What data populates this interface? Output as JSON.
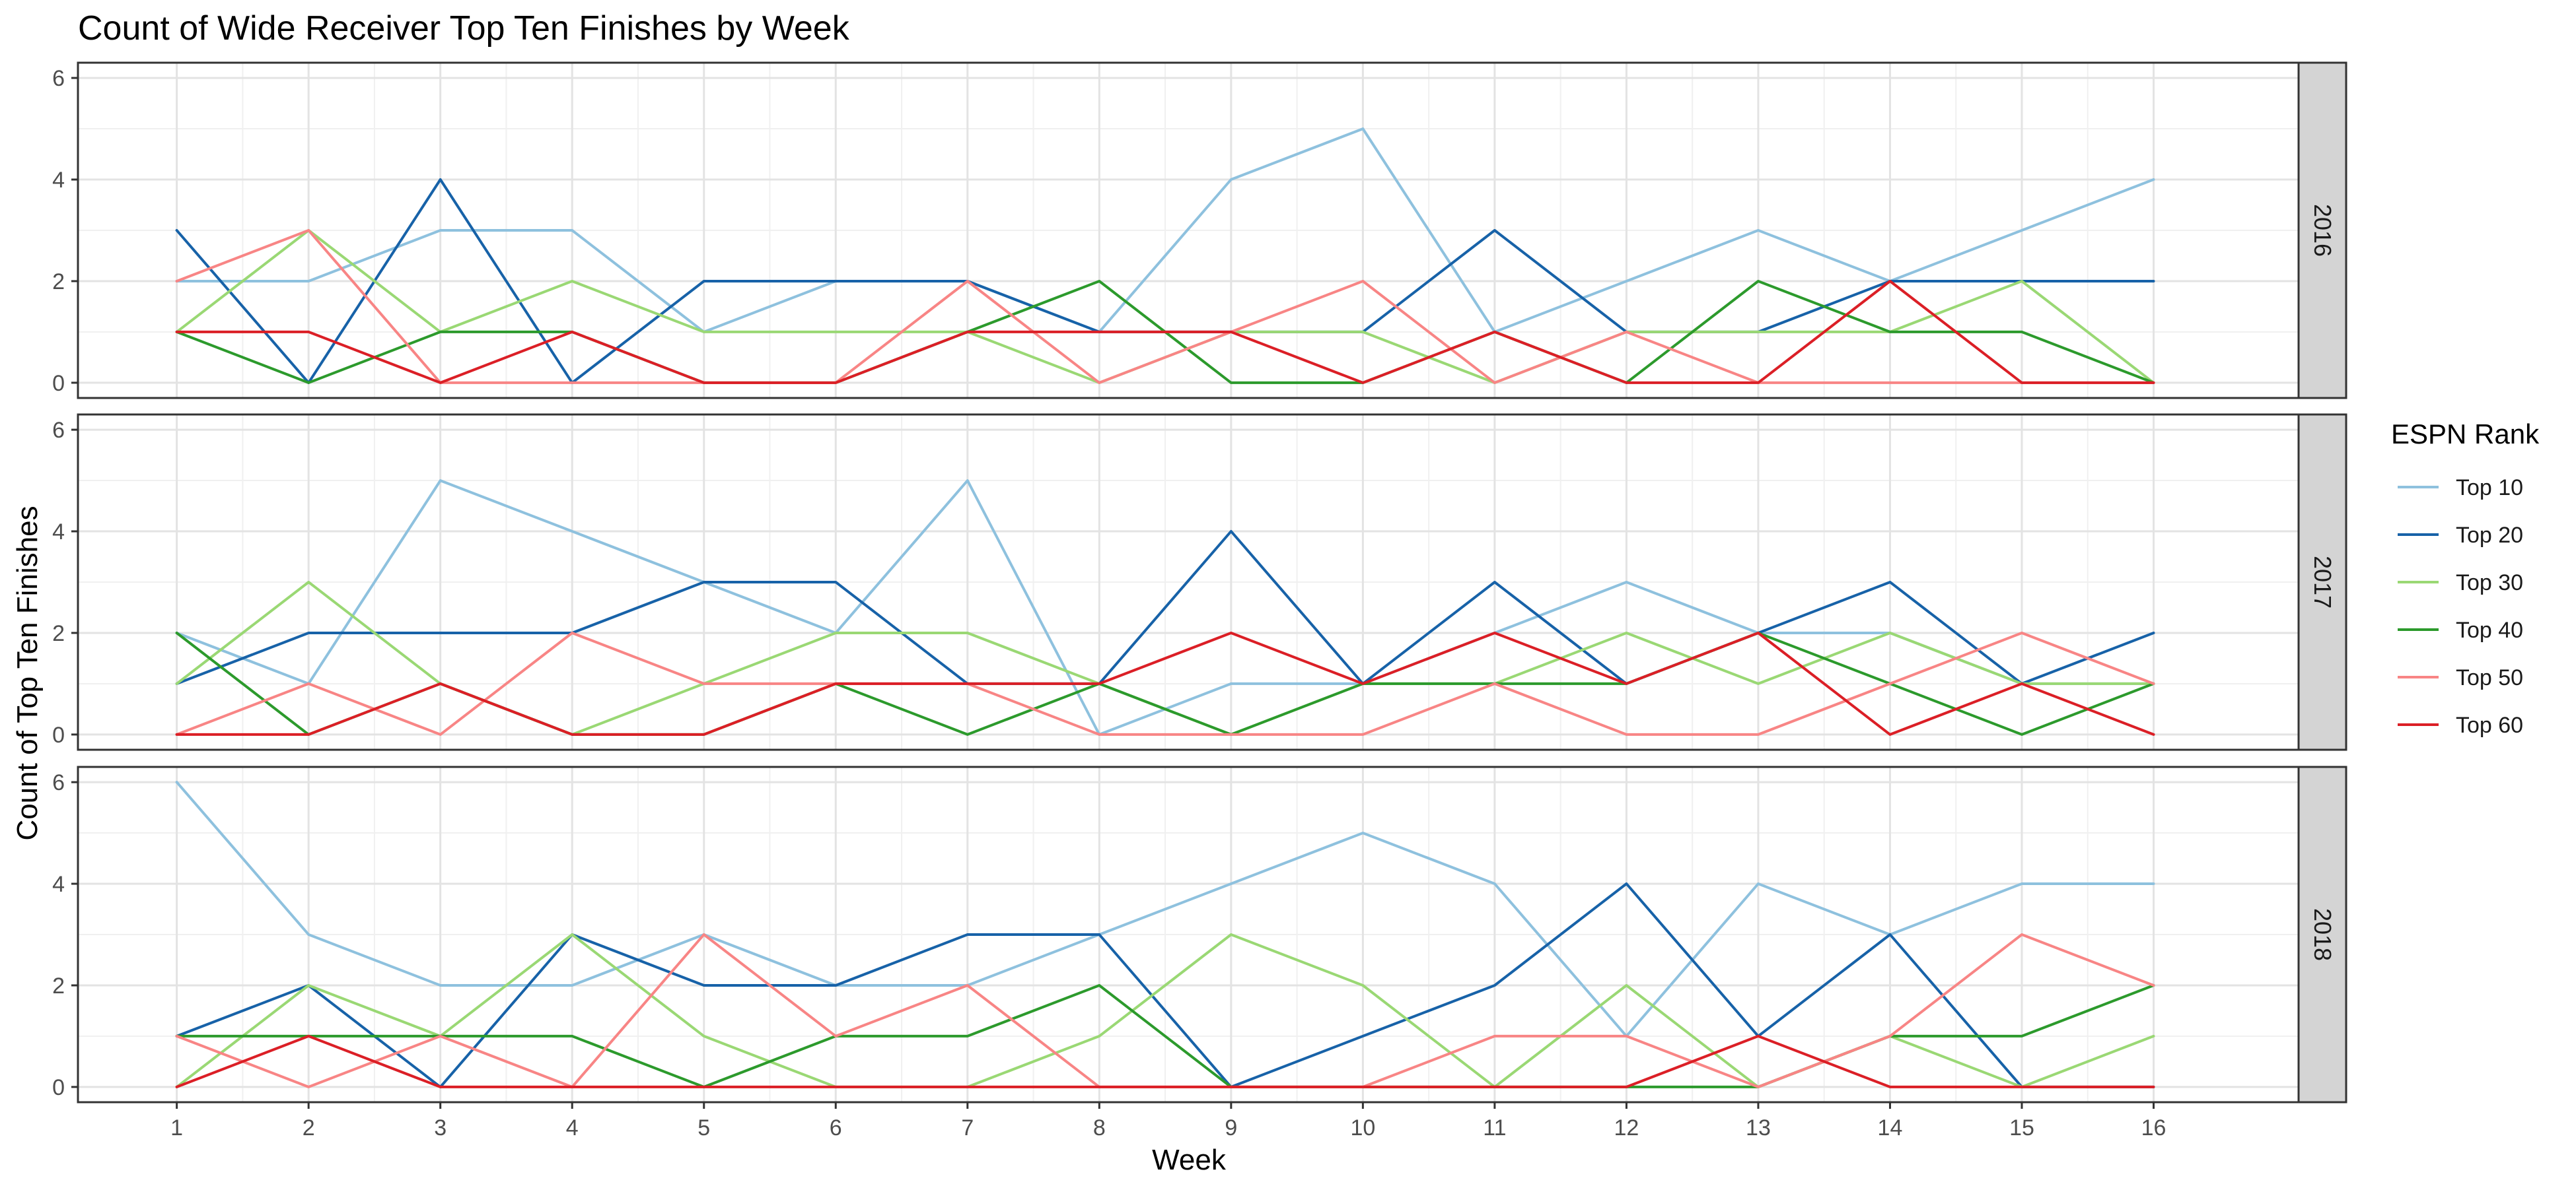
{
  "chart_data": {
    "type": "line",
    "title": "Count of Wide Receiver Top Ten Finishes by Week",
    "xlabel": "Week",
    "ylabel": "Count of Top Ten Finishes",
    "x": [
      1,
      2,
      3,
      4,
      5,
      6,
      7,
      8,
      9,
      10,
      11,
      12,
      13,
      14,
      15,
      16
    ],
    "xlim": [
      0.25,
      17.1
    ],
    "ylim": [
      -0.3,
      6.3
    ],
    "yticks": [
      0,
      2,
      4,
      6
    ],
    "grid": true,
    "legend": {
      "title": "ESPN Rank",
      "placement": "right"
    },
    "series_meta": [
      {
        "name": "Top 10",
        "color": "#8ec1de"
      },
      {
        "name": "Top 20",
        "color": "#1762a8"
      },
      {
        "name": "Top 30",
        "color": "#9ad874"
      },
      {
        "name": "Top 40",
        "color": "#2c9a2c"
      },
      {
        "name": "Top 50",
        "color": "#f88585"
      },
      {
        "name": "Top 60",
        "color": "#db1f26"
      }
    ],
    "facets": [
      {
        "label": "2016",
        "series": [
          {
            "name": "Top 10",
            "values": [
              2,
              2,
              3,
              3,
              1,
              2,
              2,
              1,
              4,
              5,
              1,
              2,
              3,
              2,
              3,
              4
            ]
          },
          {
            "name": "Top 20",
            "values": [
              3,
              0,
              4,
              0,
              2,
              2,
              2,
              1,
              1,
              1,
              3,
              1,
              1,
              2,
              2,
              2
            ]
          },
          {
            "name": "Top 30",
            "values": [
              1,
              3,
              1,
              2,
              1,
              1,
              1,
              0,
              1,
              1,
              0,
              1,
              1,
              1,
              2,
              0
            ]
          },
          {
            "name": "Top 40",
            "values": [
              1,
              0,
              1,
              1,
              0,
              0,
              1,
              2,
              0,
              0,
              1,
              0,
              2,
              1,
              1,
              0
            ]
          },
          {
            "name": "Top 50",
            "values": [
              2,
              3,
              0,
              0,
              0,
              0,
              2,
              0,
              1,
              2,
              0,
              1,
              0,
              0,
              0,
              0
            ]
          },
          {
            "name": "Top 60",
            "values": [
              1,
              1,
              0,
              1,
              0,
              0,
              1,
              1,
              1,
              0,
              1,
              0,
              0,
              2,
              0,
              0
            ]
          }
        ]
      },
      {
        "label": "2017",
        "series": [
          {
            "name": "Top 10",
            "values": [
              2,
              1,
              5,
              4,
              3,
              2,
              5,
              0,
              1,
              1,
              2,
              3,
              2,
              2,
              1,
              1
            ]
          },
          {
            "name": "Top 20",
            "values": [
              1,
              2,
              2,
              2,
              3,
              3,
              1,
              1,
              4,
              1,
              3,
              1,
              2,
              3,
              1,
              2
            ]
          },
          {
            "name": "Top 30",
            "values": [
              1,
              3,
              1,
              0,
              1,
              2,
              2,
              1,
              0,
              1,
              1,
              2,
              1,
              2,
              1,
              1
            ]
          },
          {
            "name": "Top 40",
            "values": [
              2,
              0,
              1,
              0,
              0,
              1,
              0,
              1,
              0,
              1,
              1,
              1,
              2,
              1,
              0,
              1
            ]
          },
          {
            "name": "Top 50",
            "values": [
              0,
              1,
              0,
              2,
              1,
              1,
              1,
              0,
              0,
              0,
              1,
              0,
              0,
              1,
              2,
              1
            ]
          },
          {
            "name": "Top 60",
            "values": [
              0,
              0,
              1,
              0,
              0,
              1,
              1,
              1,
              2,
              1,
              2,
              1,
              2,
              0,
              1,
              0
            ]
          }
        ]
      },
      {
        "label": "2018",
        "series": [
          {
            "name": "Top 10",
            "values": [
              6,
              3,
              2,
              2,
              3,
              2,
              2,
              3,
              4,
              5,
              4,
              1,
              4,
              3,
              4,
              4
            ]
          },
          {
            "name": "Top 20",
            "values": [
              1,
              2,
              0,
              3,
              2,
              2,
              3,
              3,
              0,
              1,
              2,
              4,
              1,
              3,
              0,
              0
            ]
          },
          {
            "name": "Top 30",
            "values": [
              0,
              2,
              1,
              3,
              1,
              0,
              0,
              1,
              3,
              2,
              0,
              2,
              0,
              1,
              0,
              1
            ]
          },
          {
            "name": "Top 40",
            "values": [
              1,
              1,
              1,
              1,
              0,
              1,
              1,
              2,
              0,
              0,
              0,
              0,
              0,
              1,
              1,
              2
            ]
          },
          {
            "name": "Top 50",
            "values": [
              1,
              0,
              1,
              0,
              3,
              1,
              2,
              0,
              0,
              0,
              1,
              1,
              0,
              1,
              3,
              2
            ]
          },
          {
            "name": "Top 60",
            "values": [
              0,
              1,
              0,
              0,
              0,
              0,
              0,
              0,
              0,
              0,
              0,
              0,
              1,
              0,
              0,
              0
            ]
          }
        ]
      }
    ]
  }
}
